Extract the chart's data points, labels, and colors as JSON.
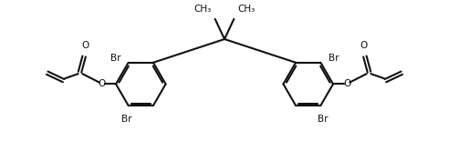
{
  "bg_color": "#ffffff",
  "line_color": "#111111",
  "lw": 1.5,
  "fs": 7.5,
  "xlim": [
    0,
    10
  ],
  "ylim": [
    0,
    3.5
  ]
}
